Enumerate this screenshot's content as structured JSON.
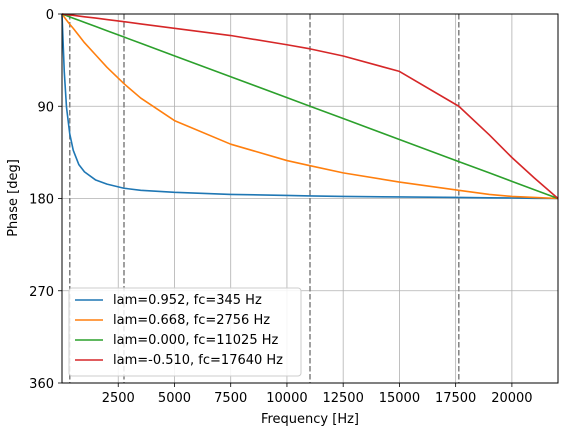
{
  "chart_data": {
    "type": "line",
    "title": "",
    "xlabel": "Frequency [Hz]",
    "ylabel": "Phase [deg]",
    "xlim": [
      0,
      22050
    ],
    "ylim": [
      0,
      360
    ],
    "y_inverted": true,
    "grid": true,
    "legend_position": "lower-left",
    "x_ticks": [
      2500,
      5000,
      7500,
      10000,
      12500,
      15000,
      17500,
      20000
    ],
    "x_tick_labels": [
      "2500",
      "5000",
      "7500",
      "10000",
      "12500",
      "15000",
      "17500",
      "20000"
    ],
    "y_ticks": [
      0,
      90,
      180,
      270,
      360
    ],
    "y_tick_labels": [
      "0",
      "90",
      "180",
      "270",
      "360"
    ],
    "vlines": [
      345,
      2756,
      11025,
      17640
    ],
    "x": [
      0,
      100,
      200,
      345,
      500,
      750,
      1000,
      1500,
      2000,
      2756,
      3500,
      5000,
      7500,
      10000,
      11025,
      12500,
      15000,
      17640,
      19000,
      20000,
      21000,
      22050
    ],
    "series": [
      {
        "name": "lam=0.952, fc=345 Hz",
        "color": "#1f77b4",
        "values": [
          0,
          56,
          91,
          117,
          133,
          147,
          154,
          162,
          166,
          170,
          172,
          174,
          176,
          177,
          177.5,
          178,
          178.5,
          179,
          179.3,
          179.5,
          179.8,
          180
        ]
      },
      {
        "name": "lam=0.668, fc=2756 Hz",
        "color": "#ff7f0e",
        "values": [
          0,
          3,
          6,
          10,
          14,
          21,
          28,
          40,
          52,
          68,
          82,
          104,
          127,
          143,
          148,
          155,
          164,
          172,
          176,
          178,
          179,
          180
        ]
      },
      {
        "name": "lam=0.000, fc=11025 Hz",
        "color": "#2ca02c",
        "values": [
          0,
          0.8,
          1.6,
          2.8,
          4.1,
          6.1,
          8.2,
          12.2,
          16.3,
          22.5,
          28.6,
          40.8,
          61.2,
          81.6,
          90,
          102,
          122.4,
          144,
          155,
          163.3,
          171.4,
          180
        ]
      },
      {
        "name": "lam=-0.510, fc=17640 Hz",
        "color": "#d62728",
        "values": [
          0,
          0.3,
          0.6,
          0.9,
          1.3,
          2,
          2.7,
          4,
          5.4,
          7.5,
          9.7,
          14,
          21,
          30,
          34,
          41,
          56,
          90,
          118,
          140,
          160,
          180
        ]
      }
    ]
  }
}
